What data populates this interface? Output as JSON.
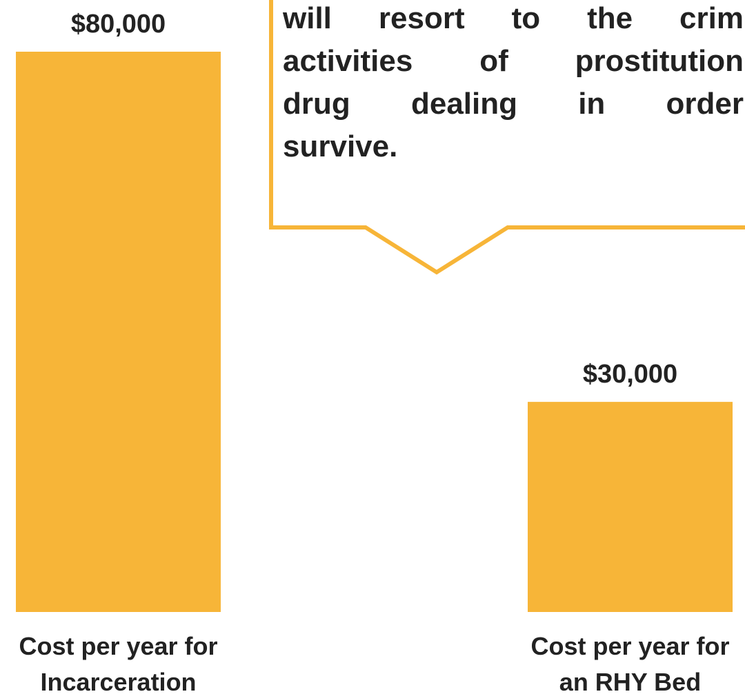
{
  "chart_data": {
    "type": "bar",
    "categories": [
      "Cost per year for Incarceration",
      "Cost per year for an RHY Bed"
    ],
    "category_lines": [
      [
        "Cost per year for",
        "Incarceration"
      ],
      [
        "Cost per year for",
        "an RHY Bed"
      ]
    ],
    "values": [
      80000,
      30000
    ],
    "value_labels": [
      "$80,000",
      "$30,000"
    ],
    "ylim": [
      0,
      80000
    ],
    "bar_color": "#F7B538"
  },
  "callout": {
    "lines": [
      "will resort to the crim",
      "activities of prostitution",
      "drug dealing in order",
      "survive."
    ],
    "border_color": "#F7B538"
  }
}
